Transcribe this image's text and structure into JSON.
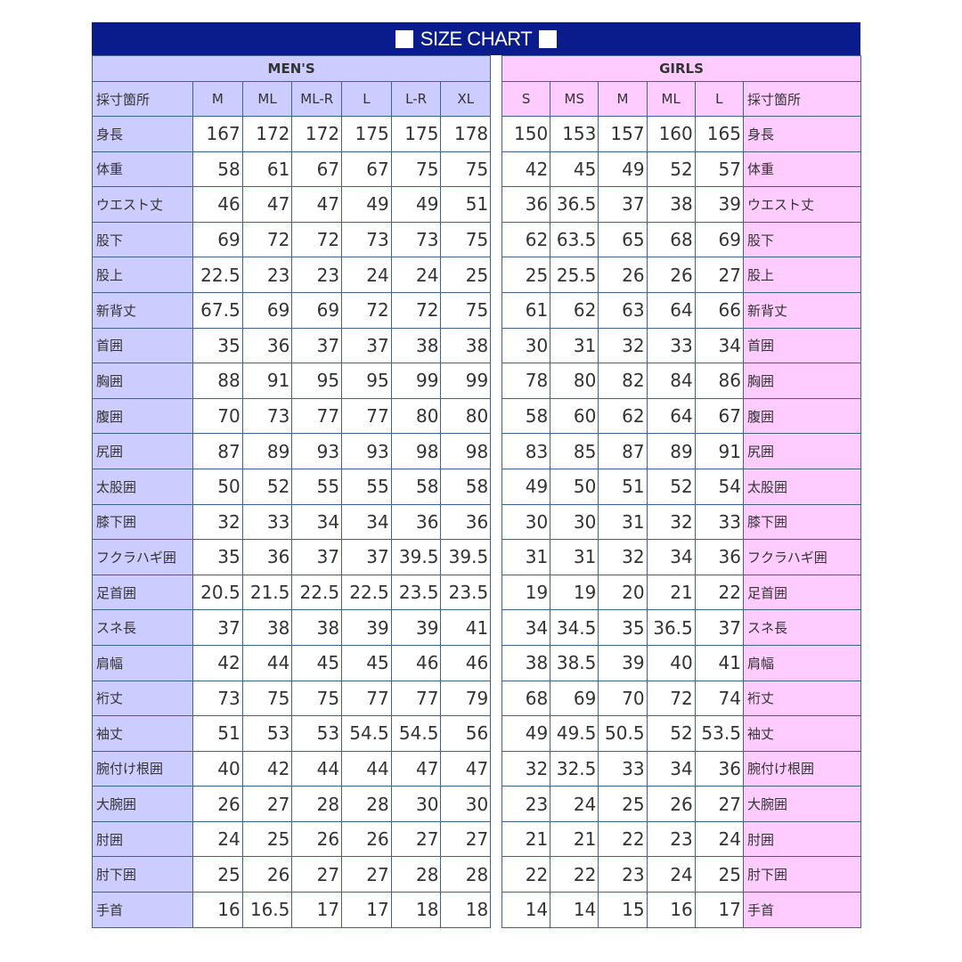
{
  "title": "SIZE CHART",
  "colors": {
    "title_bar": "#0a1c8c",
    "men_bg": "#ccccff",
    "girls_bg": "#ffccff"
  },
  "measure_header": "採寸箇所",
  "rows": [
    "身長",
    "体重",
    "ウエスト丈",
    "股下",
    "股上",
    "新背丈",
    "首囲",
    "胸囲",
    "腹囲",
    "尻囲",
    "太股囲",
    "膝下囲",
    "フクラハギ囲",
    "足首囲",
    "スネ長",
    "肩幅",
    "裄丈",
    "袖丈",
    "腕付け根囲",
    "大腕囲",
    "肘囲",
    "肘下囲",
    "手首"
  ],
  "men": {
    "label": "MEN'S",
    "sizes": [
      "M",
      "ML",
      "ML-R",
      "L",
      "L-R",
      "XL"
    ],
    "values": [
      [
        "167",
        "172",
        "172",
        "175",
        "175",
        "178"
      ],
      [
        "58",
        "61",
        "67",
        "67",
        "75",
        "75"
      ],
      [
        "46",
        "47",
        "47",
        "49",
        "49",
        "51"
      ],
      [
        "69",
        "72",
        "72",
        "73",
        "73",
        "75"
      ],
      [
        "22.5",
        "23",
        "23",
        "24",
        "24",
        "25"
      ],
      [
        "67.5",
        "69",
        "69",
        "72",
        "72",
        "75"
      ],
      [
        "35",
        "36",
        "37",
        "37",
        "38",
        "38"
      ],
      [
        "88",
        "91",
        "95",
        "95",
        "99",
        "99"
      ],
      [
        "70",
        "73",
        "77",
        "77",
        "80",
        "80"
      ],
      [
        "87",
        "89",
        "93",
        "93",
        "98",
        "98"
      ],
      [
        "50",
        "52",
        "55",
        "55",
        "58",
        "58"
      ],
      [
        "32",
        "33",
        "34",
        "34",
        "36",
        "36"
      ],
      [
        "35",
        "36",
        "37",
        "37",
        "39.5",
        "39.5"
      ],
      [
        "20.5",
        "21.5",
        "22.5",
        "22.5",
        "23.5",
        "23.5"
      ],
      [
        "37",
        "38",
        "38",
        "39",
        "39",
        "41"
      ],
      [
        "42",
        "44",
        "45",
        "45",
        "46",
        "46"
      ],
      [
        "73",
        "75",
        "75",
        "77",
        "77",
        "79"
      ],
      [
        "51",
        "53",
        "53",
        "54.5",
        "54.5",
        "56"
      ],
      [
        "40",
        "42",
        "44",
        "44",
        "47",
        "47"
      ],
      [
        "26",
        "27",
        "28",
        "28",
        "30",
        "30"
      ],
      [
        "24",
        "25",
        "26",
        "26",
        "27",
        "27"
      ],
      [
        "25",
        "26",
        "27",
        "27",
        "28",
        "28"
      ],
      [
        "16",
        "16.5",
        "17",
        "17",
        "18",
        "18"
      ]
    ]
  },
  "girls": {
    "label": "GIRLS",
    "sizes": [
      "S",
      "MS",
      "M",
      "ML",
      "L"
    ],
    "values": [
      [
        "150",
        "153",
        "157",
        "160",
        "165"
      ],
      [
        "42",
        "45",
        "49",
        "52",
        "57"
      ],
      [
        "36",
        "36.5",
        "37",
        "38",
        "39"
      ],
      [
        "62",
        "63.5",
        "65",
        "68",
        "69"
      ],
      [
        "25",
        "25.5",
        "26",
        "26",
        "27"
      ],
      [
        "61",
        "62",
        "63",
        "64",
        "66"
      ],
      [
        "30",
        "31",
        "32",
        "33",
        "34"
      ],
      [
        "78",
        "80",
        "82",
        "84",
        "86"
      ],
      [
        "58",
        "60",
        "62",
        "64",
        "67"
      ],
      [
        "83",
        "85",
        "87",
        "89",
        "91"
      ],
      [
        "49",
        "50",
        "51",
        "52",
        "54"
      ],
      [
        "30",
        "30",
        "31",
        "32",
        "33"
      ],
      [
        "31",
        "31",
        "32",
        "34",
        "36"
      ],
      [
        "19",
        "19",
        "20",
        "21",
        "22"
      ],
      [
        "34",
        "34.5",
        "35",
        "36.5",
        "37"
      ],
      [
        "38",
        "38.5",
        "39",
        "40",
        "41"
      ],
      [
        "68",
        "69",
        "70",
        "72",
        "74"
      ],
      [
        "49",
        "49.5",
        "50.5",
        "52",
        "53.5"
      ],
      [
        "32",
        "32.5",
        "33",
        "34",
        "36"
      ],
      [
        "23",
        "24",
        "25",
        "26",
        "27"
      ],
      [
        "21",
        "21",
        "22",
        "23",
        "24"
      ],
      [
        "22",
        "22",
        "23",
        "24",
        "25"
      ],
      [
        "14",
        "14",
        "15",
        "16",
        "17"
      ]
    ]
  }
}
